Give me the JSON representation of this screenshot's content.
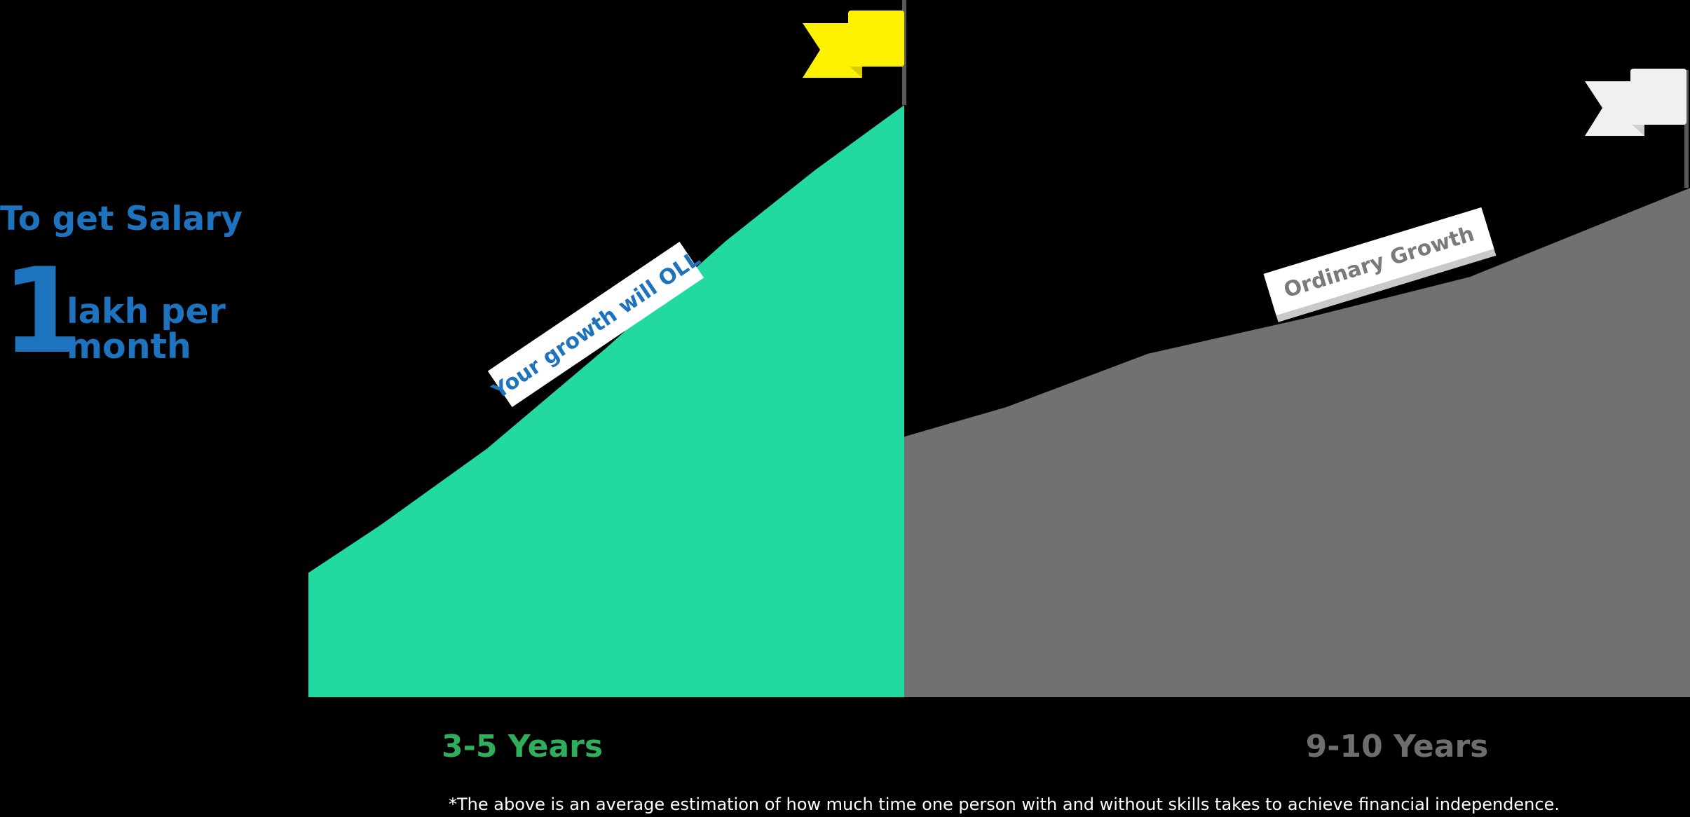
{
  "heading": "To get Salary",
  "amount": "1",
  "amount_unit": "lakh per month",
  "footnote": "*The above is an average estimation of how much time one person with and without skills takes to achieve financial independence.",
  "colors": {
    "heading": "#1e73be",
    "fast_area": "#23d9a2",
    "fast_label": "#2fae5b",
    "ordinary_area": "#727072",
    "ordinary_label": "#6e6e6e",
    "yellow_flag": "#fff200",
    "white_flag": "#f0f0f0",
    "pole": "#5a5a5a"
  },
  "icons": {
    "fast_goal": "yellow-flag-icon",
    "ordinary_goal": "white-flag-icon"
  },
  "chart_data": {
    "type": "area",
    "title": "",
    "xlabel": "",
    "ylabel": "",
    "grid": false,
    "ylim": [
      0,
      100
    ],
    "series": [
      {
        "name": "Your growth will OLL",
        "duration_label": "3-5 Years",
        "points": [
          [
            0,
            21
          ],
          [
            12,
            29
          ],
          [
            30,
            42
          ],
          [
            50,
            59
          ],
          [
            70,
            77
          ],
          [
            85,
            89
          ],
          [
            100,
            100
          ]
        ]
      },
      {
        "name": "Ordinary Growth",
        "duration_label": "9-10 Years",
        "points": [
          [
            0,
            44
          ],
          [
            13,
            49
          ],
          [
            31,
            58
          ],
          [
            51,
            64
          ],
          [
            72,
            71
          ],
          [
            100,
            86
          ]
        ]
      }
    ]
  }
}
